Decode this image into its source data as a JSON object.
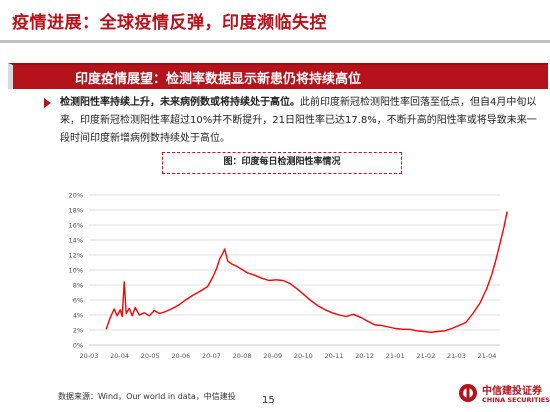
{
  "slide": {
    "title": "疫情进展：全球疫情反弹，印度濒临失控",
    "banner": "印度疫情展望：检测率数据显示新患仍将持续高位",
    "para_bold": "检测阳性率持续上升，未来病例数或将持续处于高位。",
    "para_rest": "此前印度新冠检测阳性率回落至低点，但自4月中旬以来，印度新冠检测阳性率超过10%并不断提升，21日阳性率已达17.8%，不断升高的阳性率或将导致未来一段时间印度新增病例数持续处于高位。",
    "source": "数据来源：Wind，Our world in data，中信建投",
    "page_number": "15",
    "logo_cn": "中信建投证券",
    "logo_en": "CHINA SECURITIES"
  },
  "colors": {
    "accent": "#b5121b",
    "line": "#ff0000",
    "grid": "#d9d9d9"
  },
  "chart_data": {
    "type": "line",
    "title": "图：印度每日检测阳性率情况",
    "xlabel": "",
    "ylabel": "",
    "x_tick_labels": [
      "20-03",
      "20-04",
      "20-05",
      "20-06",
      "20-07",
      "20-08",
      "20-09",
      "20-10",
      "20-11",
      "20-12",
      "21-01",
      "21-02",
      "21-03",
      "21-04"
    ],
    "y_tick_labels": [
      "0%",
      "2%",
      "4%",
      "6%",
      "8%",
      "10%",
      "12%",
      "14%",
      "16%",
      "18%",
      "20%"
    ],
    "ylim": [
      0,
      20
    ],
    "grid": true,
    "series": [
      {
        "values_unit": "percent",
        "points": [
          [
            "2020-03-18",
            2.1
          ],
          [
            "2020-03-22",
            3.6
          ],
          [
            "2020-03-26",
            4.8
          ],
          [
            "2020-03-29",
            3.9
          ],
          [
            "2020-04-01",
            4.7
          ],
          [
            "2020-04-03",
            3.8
          ],
          [
            "2020-04-05",
            8.4
          ],
          [
            "2020-04-07",
            4.2
          ],
          [
            "2020-04-10",
            4.9
          ],
          [
            "2020-04-13",
            3.9
          ],
          [
            "2020-04-16",
            5.0
          ],
          [
            "2020-04-20",
            4.0
          ],
          [
            "2020-04-25",
            4.3
          ],
          [
            "2020-04-30",
            3.9
          ],
          [
            "2020-05-05",
            4.6
          ],
          [
            "2020-05-10",
            4.2
          ],
          [
            "2020-05-15",
            4.4
          ],
          [
            "2020-05-22",
            4.8
          ],
          [
            "2020-05-29",
            5.3
          ],
          [
            "2020-06-05",
            6.0
          ],
          [
            "2020-06-12",
            6.6
          ],
          [
            "2020-06-20",
            7.2
          ],
          [
            "2020-06-27",
            7.8
          ],
          [
            "2020-07-02",
            9.0
          ],
          [
            "2020-07-06",
            10.2
          ],
          [
            "2020-07-09",
            11.5
          ],
          [
            "2020-07-12",
            12.2
          ],
          [
            "2020-07-14",
            12.8
          ],
          [
            "2020-07-17",
            11.2
          ],
          [
            "2020-07-21",
            10.8
          ],
          [
            "2020-07-26",
            10.5
          ],
          [
            "2020-07-31",
            10.1
          ],
          [
            "2020-08-06",
            9.6
          ],
          [
            "2020-08-13",
            9.3
          ],
          [
            "2020-08-20",
            8.9
          ],
          [
            "2020-08-27",
            8.6
          ],
          [
            "2020-09-03",
            8.7
          ],
          [
            "2020-09-10",
            8.6
          ],
          [
            "2020-09-17",
            8.2
          ],
          [
            "2020-09-24",
            7.5
          ],
          [
            "2020-10-01",
            6.7
          ],
          [
            "2020-10-08",
            5.9
          ],
          [
            "2020-10-15",
            5.2
          ],
          [
            "2020-10-22",
            4.7
          ],
          [
            "2020-10-29",
            4.3
          ],
          [
            "2020-11-05",
            4.0
          ],
          [
            "2020-11-12",
            3.8
          ],
          [
            "2020-11-19",
            4.1
          ],
          [
            "2020-11-26",
            3.7
          ],
          [
            "2020-12-03",
            3.2
          ],
          [
            "2020-12-10",
            2.7
          ],
          [
            "2020-12-17",
            2.6
          ],
          [
            "2020-12-24",
            2.4
          ],
          [
            "2020-12-31",
            2.2
          ],
          [
            "2021-01-07",
            2.1
          ],
          [
            "2021-01-14",
            2.1
          ],
          [
            "2021-01-21",
            1.9
          ],
          [
            "2021-01-28",
            1.8
          ],
          [
            "2021-02-04",
            1.7
          ],
          [
            "2021-02-11",
            1.8
          ],
          [
            "2021-02-18",
            1.9
          ],
          [
            "2021-02-25",
            2.2
          ],
          [
            "2021-03-04",
            2.6
          ],
          [
            "2021-03-11",
            3.0
          ],
          [
            "2021-03-18",
            4.2
          ],
          [
            "2021-03-25",
            5.6
          ],
          [
            "2021-04-01",
            7.6
          ],
          [
            "2021-04-06",
            9.5
          ],
          [
            "2021-04-10",
            11.4
          ],
          [
            "2021-04-14",
            13.6
          ],
          [
            "2021-04-18",
            15.8
          ],
          [
            "2021-04-21",
            17.8
          ]
        ]
      }
    ]
  }
}
